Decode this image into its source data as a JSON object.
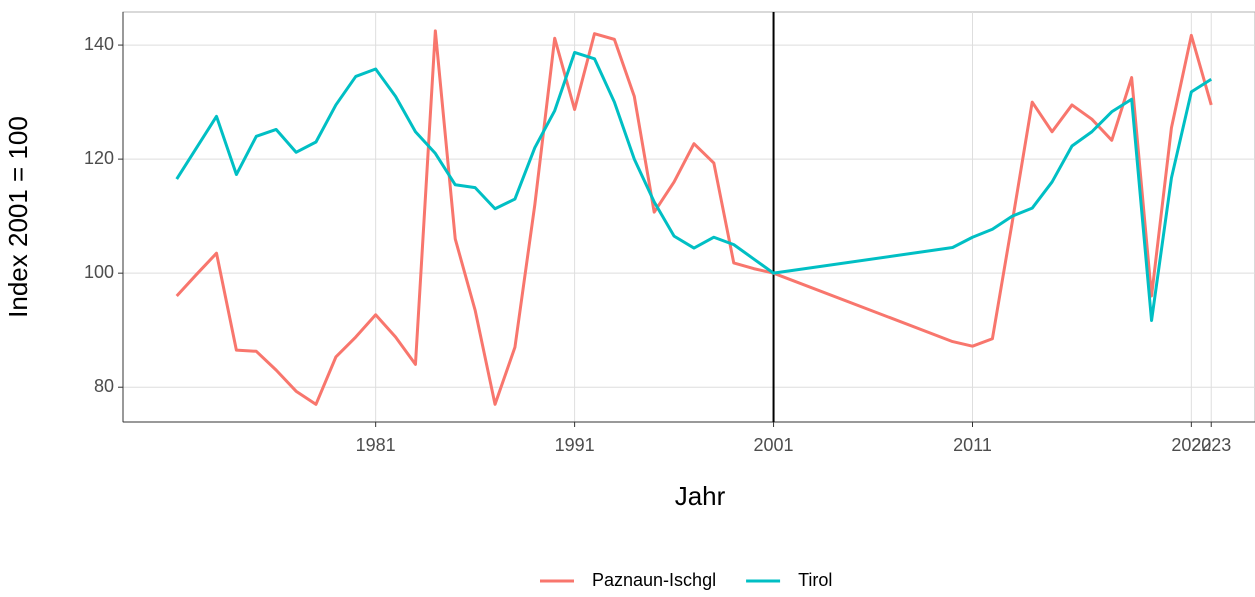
{
  "chart_data": {
    "type": "line",
    "x_label": "Jahr",
    "y_label": "Index 2001 = 100",
    "x": [
      1971,
      1972,
      1973,
      1974,
      1975,
      1976,
      1977,
      1978,
      1979,
      1980,
      1981,
      1982,
      1983,
      1984,
      1985,
      1986,
      1987,
      1988,
      1989,
      1990,
      1991,
      1992,
      1993,
      1994,
      1995,
      1996,
      1997,
      1998,
      1999,
      2000,
      2001,
      2010,
      2011,
      2012,
      2013,
      2014,
      2015,
      2016,
      2017,
      2018,
      2019,
      2020,
      2021,
      2022,
      2023
    ],
    "series": [
      {
        "name": "Paznaun-Ischgl",
        "color": "#F8766D",
        "values": [
          96,
          99.8,
          103.5,
          86.5,
          86.3,
          83,
          79.3,
          77,
          85.3,
          88.8,
          92.7,
          88.8,
          84,
          142.5,
          106,
          93.5,
          77,
          87,
          112,
          141.2,
          128.7,
          142,
          141,
          131,
          110.7,
          116,
          122.7,
          119.3,
          101.8,
          100.8,
          100,
          88,
          87.2,
          88.5,
          109,
          130,
          124.8,
          129.5,
          127,
          123.3,
          134.3,
          96,
          125.5,
          141.7,
          129.5
        ]
      },
      {
        "name": "Tirol",
        "color": "#00BFC4",
        "values": [
          116.5,
          122,
          127.5,
          117.3,
          124,
          125.2,
          121.2,
          123,
          129.5,
          134.5,
          135.8,
          131,
          124.8,
          121,
          115.5,
          115,
          111.3,
          113,
          122,
          128.5,
          138.7,
          137.6,
          130,
          120,
          112.5,
          106.5,
          104.4,
          106.3,
          105,
          102.5,
          100,
          104.5,
          106.3,
          107.7,
          110,
          111.4,
          116,
          122.3,
          124.8,
          128.3,
          130.5,
          91.7,
          116.7,
          131.8,
          134
        ]
      }
    ],
    "xlim": [
      1968.3,
      2025.2
    ],
    "xticks": [
      1981,
      1991,
      2001,
      2011,
      2022,
      2023
    ],
    "ylim": [
      73.9,
      145.8
    ],
    "yticks": [
      80,
      100,
      120,
      140
    ],
    "vline": 2001,
    "grid": true,
    "legend": "bottom"
  }
}
